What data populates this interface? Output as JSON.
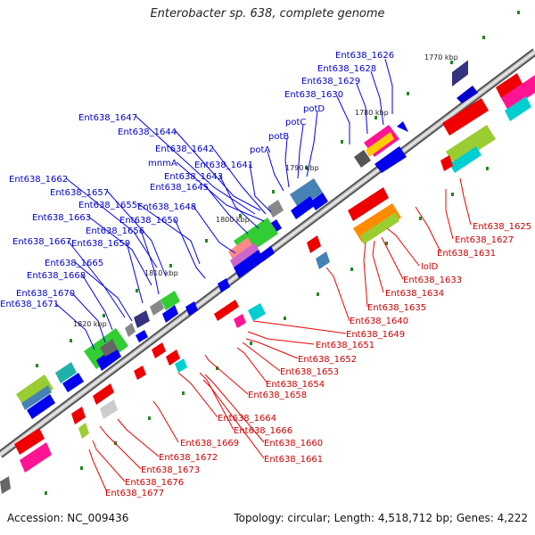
{
  "title": "Enterobacter sp. 638, complete genome",
  "footer": {
    "accession": "Accession: NC_009436",
    "topology": "Topology: circular; Length: 4,518,712 bp; Genes: 4,222"
  },
  "kbp_labels": [
    "1770 kbp",
    "1780 kbp",
    "1790 kbp",
    "1800 kbp",
    "1810 kbp",
    "1820 kbp"
  ],
  "blue_labels": [
    "Ent638_1626",
    "Ent638_1628",
    "Ent638_1629",
    "Ent638_1630",
    "potD",
    "potC",
    "potB",
    "potA",
    "Ent638_1647",
    "Ent638_1644",
    "Ent638_1642",
    "mnmA",
    "Ent638_1641",
    "Ent638_1643",
    "Ent638_1645",
    "Ent638_1662",
    "Ent638_1657",
    "Ent638_1655",
    "Ent638_1648",
    "Ent638_1663",
    "Ent638_1650",
    "Ent638_1656",
    "Ent638_1667",
    "Ent638_1659",
    "Ent638_1665",
    "Ent638_1668",
    "Ent638_1670",
    "Ent638_1671"
  ],
  "red_labels": [
    "Ent638_1625",
    "Ent638_1627",
    "Ent638_1631",
    "lolD",
    "Ent638_1633",
    "Ent638_1634",
    "Ent638_1635",
    "Ent638_1640",
    "Ent638_1649",
    "Ent638_1651",
    "Ent638_1652",
    "Ent638_1653",
    "Ent638_1654",
    "Ent638_1658",
    "Ent638_1664",
    "Ent638_1666",
    "Ent638_1669",
    "Ent638_1660",
    "Ent638_1661",
    "Ent638_1672",
    "Ent638_1673",
    "Ent638_1676",
    "Ent638_1677"
  ],
  "colors": {
    "forward_gene": "#0000ee",
    "reverse_gene": "#ee0000",
    "backbone": "#888888",
    "blue_label": "#0000cc",
    "red_label": "#cc0000",
    "tick": "#228822"
  }
}
